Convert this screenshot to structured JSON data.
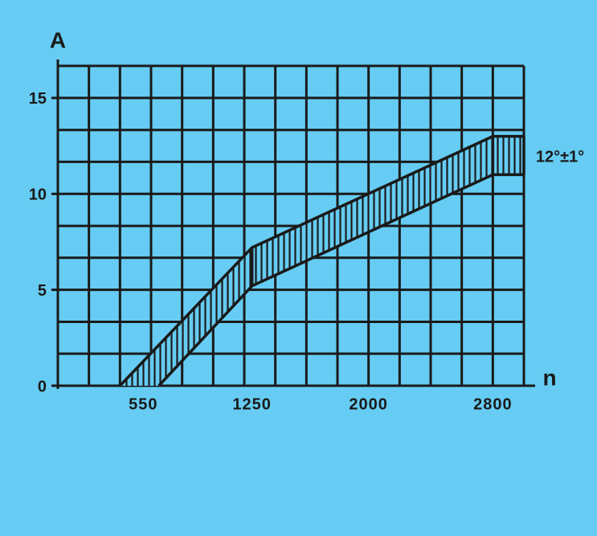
{
  "chart_data": {
    "type": "band",
    "y_label": "A",
    "x_label": "n",
    "annotation": "12°±1°",
    "xlim": [
      0,
      3000
    ],
    "ylim": [
      0,
      16.67
    ],
    "xticks": [
      550,
      1250,
      2000,
      2800
    ],
    "yticks": [
      0,
      5,
      10,
      15
    ],
    "xgrid": [
      0,
      200,
      400,
      600,
      800,
      1000,
      1200,
      1400,
      1600,
      1800,
      2000,
      2200,
      2400,
      2600,
      2800,
      3000
    ],
    "ygrid": [
      0,
      1.67,
      3.33,
      5,
      6.67,
      8.33,
      10,
      11.67,
      13.33,
      15,
      16.67
    ],
    "grid": true,
    "color": "#1a1a1a",
    "series": [
      {
        "x": [
          400,
          1250,
          2800,
          3000
        ],
        "values": [
          0,
          7.2,
          13,
          13
        ]
      },
      {
        "x": [
          650,
          1250,
          2800,
          3000
        ],
        "values": [
          0,
          5.2,
          11,
          11
        ]
      }
    ]
  }
}
